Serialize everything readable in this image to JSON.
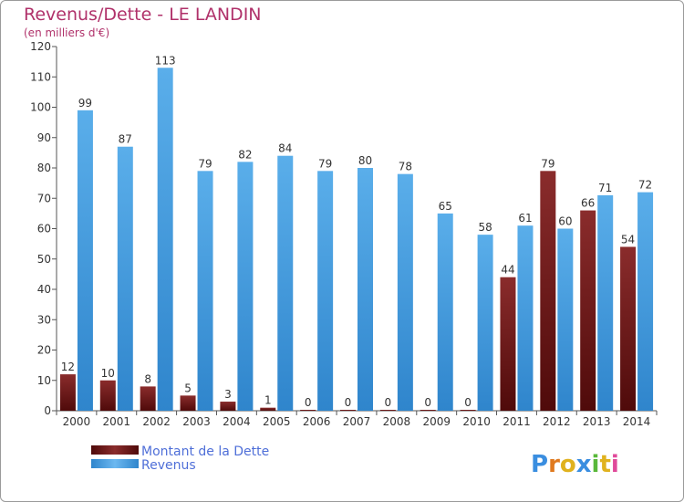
{
  "chart_data": {
    "type": "bar",
    "title": "Revenus/Dette - LE LANDIN",
    "subtitle": "(en milliers d'€)",
    "categories": [
      "2000",
      "2001",
      "2002",
      "2003",
      "2004",
      "2005",
      "2006",
      "2007",
      "2008",
      "2009",
      "2010",
      "2011",
      "2012",
      "2013",
      "2014"
    ],
    "series": [
      {
        "name": "Montant de la Dette",
        "color": "#7a1f1f",
        "values": [
          12,
          10,
          8,
          5,
          3,
          1,
          0,
          0,
          0,
          0,
          0,
          44,
          79,
          66,
          54
        ]
      },
      {
        "name": "Revenus",
        "color": "#4a9fe0",
        "values": [
          99,
          87,
          113,
          79,
          82,
          84,
          79,
          80,
          78,
          65,
          58,
          61,
          60,
          71,
          72
        ]
      }
    ],
    "ylim": [
      0,
      120
    ],
    "yticks": [
      0,
      10,
      20,
      30,
      40,
      50,
      60,
      70,
      80,
      90,
      100,
      110,
      120
    ],
    "grid": false,
    "legend_position": "bottom-left"
  },
  "logo": {
    "text": "Proxiti"
  },
  "colors": {
    "title": "#b0316a",
    "legend_text": "#4f6fd8",
    "axis": "#555555"
  }
}
